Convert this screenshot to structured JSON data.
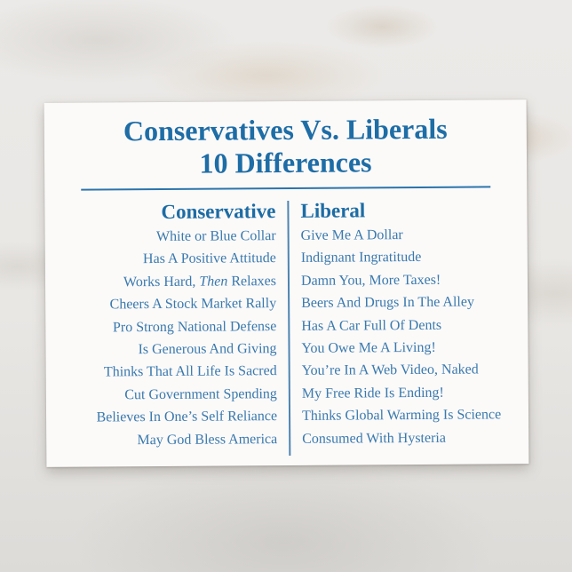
{
  "postcard": {
    "title": {
      "line1": "Conservatives Vs. Liberals",
      "line2": "10 Differences"
    },
    "colors": {
      "title_blue": "#1e6da6",
      "body_blue": "#3a79ae",
      "rule_blue": "#2b74ab",
      "card_background": "#fbfaf9",
      "page_background": "#e9e7e4"
    },
    "table": {
      "left_header": "Conservative",
      "right_header": "Liberal",
      "rows": [
        {
          "conservative": "White or Blue Collar",
          "liberal": "Give Me A Dollar"
        },
        {
          "conservative": "Has A Positive Attitude",
          "liberal": "Indignant Ingratitude"
        },
        {
          "conservative_pre": "Works Hard, ",
          "conservative_italic": "Then",
          "conservative_post": " Relaxes",
          "liberal": "Damn You, More Taxes!"
        },
        {
          "conservative": "Cheers A Stock Market Rally",
          "liberal": "Beers And Drugs In The Alley"
        },
        {
          "conservative": "Pro Strong National Defense",
          "liberal": "Has A Car Full Of Dents"
        },
        {
          "conservative": "Is Generous And Giving",
          "liberal": "You Owe Me A Living!"
        },
        {
          "conservative": "Thinks That All Life Is Sacred",
          "liberal": "You’re In A Web Video, Naked"
        },
        {
          "conservative": "Cut Government Spending",
          "liberal": "My Free Ride Is Ending!"
        },
        {
          "conservative": "Believes In One’s Self Reliance",
          "liberal": "Thinks Global Warming Is Science"
        },
        {
          "conservative": "May God Bless America",
          "liberal": "Consumed With Hysteria"
        }
      ]
    }
  }
}
